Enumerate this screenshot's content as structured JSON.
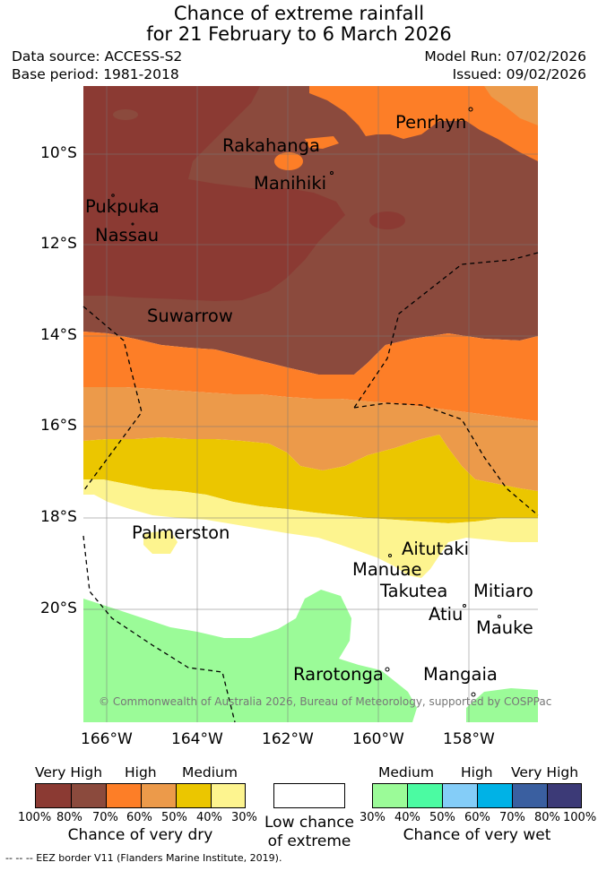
{
  "header": {
    "title_line1": "Chance of extreme rainfall",
    "title_line2": "for 21 February to 6 March 2026",
    "data_source": "Data source: ACCESS-S2",
    "base_period": "Base period: 1981-2018",
    "model_run": "Model Run: 07/02/2026",
    "issued": "Issued: 09/02/2026"
  },
  "map": {
    "lat_ticks": [
      "10°S",
      "12°S",
      "14°S",
      "16°S",
      "18°S",
      "20°S"
    ],
    "lon_ticks": [
      "166°W",
      "164°W",
      "162°W",
      "160°W",
      "158°W"
    ],
    "places": {
      "penrhyn": "Penrhyn",
      "rakahanga": "Rakahanga",
      "manihiki": "Manihiki",
      "pukapuka": "Pukpuka",
      "nassau": "Nassau",
      "suwarrow": "Suwarrow",
      "palmerston": "Palmerston",
      "aitutaki": "Aitutaki",
      "manuae": "Manuae",
      "takutea": "Takutea",
      "mitiaro": "Mitiaro",
      "atiu": "Atiu",
      "mauke": "Mauke",
      "rarotonga": "Rarotonga",
      "mangaia": "Mangaia"
    },
    "copyright": "© Commonwealth of Australia 2026, Bureau of Meteorology, supported by COSPPac"
  },
  "colors": {
    "dry_100_80": "#8b3a33",
    "dry_80_70": "#8b4a3d",
    "dry_70_60": "#fd7e27",
    "dry_60_50": "#ec9a4a",
    "dry_50_40": "#ebc600",
    "dry_40_30": "#fdf48f",
    "low": "#ffffff",
    "wet_30_40": "#9bfb98",
    "wet_40_50": "#4bfba2",
    "wet_50_60": "#84cdf8",
    "wet_60_70": "#00b2e6",
    "wet_70_80": "#3a5fa0",
    "wet_80_100": "#3c3a77"
  },
  "legend": {
    "dry_heads": [
      "Very High",
      "High",
      "Medium"
    ],
    "dry_pcts": [
      "100%",
      "80%",
      "70%",
      "60%",
      "50%",
      "40%",
      "30%"
    ],
    "dry_caption": "Chance of very dry",
    "low_caption_1": "Low chance",
    "low_caption_2": "of extreme",
    "wet_heads": [
      "Medium",
      "High",
      "Very High"
    ],
    "wet_pcts": [
      "30%",
      "40%",
      "50%",
      "60%",
      "70%",
      "80%",
      "100%"
    ],
    "wet_caption": "Chance of very wet",
    "eez_note": "--  --  -- EEZ border V11 (Flanders Marine Institute, 2019)."
  }
}
